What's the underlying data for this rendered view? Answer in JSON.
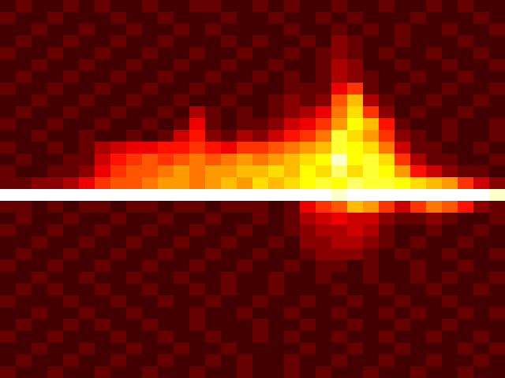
{
  "chart_data": {
    "type": "heatmap",
    "color": "hot",
    "zlim": [
      0,
      20
    ],
    "tick_labels": false,
    "cells": [
      [
        2,
        3,
        2,
        2,
        3,
        2,
        3,
        2,
        2,
        3,
        2,
        2,
        3,
        3,
        2,
        2,
        3,
        2,
        3,
        2,
        2,
        3,
        2,
        2,
        3,
        2,
        2,
        3,
        2,
        3,
        2,
        2
      ],
      [
        3,
        2,
        2,
        3,
        2,
        2,
        2,
        3,
        2,
        2,
        3,
        2,
        2,
        2,
        3,
        2,
        2,
        3,
        2,
        2,
        3,
        2,
        3,
        2,
        2,
        2,
        3,
        2,
        2,
        2,
        3,
        2
      ],
      [
        2,
        2,
        3,
        2,
        2,
        3,
        2,
        2,
        3,
        2,
        2,
        3,
        2,
        3,
        2,
        2,
        2,
        2,
        3,
        2,
        2,
        3,
        2,
        3,
        2,
        3,
        2,
        2,
        3,
        2,
        2,
        3
      ],
      [
        2,
        3,
        2,
        2,
        3,
        2,
        2,
        3,
        2,
        2,
        3,
        2,
        2,
        2,
        3,
        2,
        3,
        2,
        2,
        3,
        2,
        4,
        3,
        2,
        2,
        3,
        2,
        2,
        2,
        3,
        2,
        2
      ],
      [
        3,
        2,
        2,
        3,
        2,
        2,
        3,
        2,
        2,
        3,
        2,
        2,
        3,
        2,
        2,
        3,
        2,
        2,
        3,
        2,
        3,
        4,
        3,
        2,
        3,
        2,
        2,
        3,
        2,
        2,
        3,
        2
      ],
      [
        2,
        2,
        3,
        2,
        2,
        3,
        2,
        2,
        3,
        2,
        2,
        3,
        2,
        2,
        3,
        2,
        2,
        3,
        2,
        2,
        3,
        5,
        4,
        2,
        2,
        3,
        2,
        2,
        3,
        2,
        2,
        3
      ],
      [
        2,
        3,
        2,
        2,
        3,
        2,
        2,
        3,
        2,
        2,
        3,
        2,
        2,
        3,
        2,
        2,
        3,
        2,
        3,
        2,
        3,
        5,
        4,
        3,
        2,
        2,
        3,
        2,
        2,
        3,
        2,
        2
      ],
      [
        3,
        2,
        2,
        3,
        2,
        2,
        3,
        2,
        2,
        3,
        2,
        2,
        3,
        2,
        2,
        3,
        2,
        2,
        3,
        3,
        3,
        7,
        9,
        3,
        2,
        3,
        2,
        2,
        3,
        2,
        2,
        3
      ],
      [
        2,
        2,
        3,
        2,
        2,
        3,
        2,
        2,
        3,
        2,
        2,
        3,
        2,
        2,
        3,
        2,
        2,
        3,
        4,
        3,
        4,
        10,
        13,
        5,
        3,
        2,
        2,
        3,
        2,
        2,
        3,
        2
      ],
      [
        2,
        3,
        2,
        2,
        3,
        2,
        2,
        3,
        2,
        2,
        3,
        2,
        5,
        3,
        2,
        3,
        2,
        3,
        4,
        5,
        7,
        11,
        14,
        9,
        4,
        2,
        3,
        2,
        2,
        3,
        2,
        2
      ],
      [
        3,
        2,
        2,
        3,
        2,
        2,
        3,
        2,
        2,
        3,
        2,
        3,
        7,
        3,
        2,
        3,
        3,
        4,
        6,
        7,
        9,
        12,
        15,
        13,
        8,
        3,
        2,
        2,
        3,
        2,
        2,
        3
      ],
      [
        2,
        2,
        3,
        2,
        2,
        3,
        2,
        2,
        3,
        2,
        3,
        6,
        8,
        4,
        3,
        5,
        4,
        6,
        8,
        9,
        11,
        16,
        14,
        12,
        9,
        4,
        3,
        2,
        3,
        2,
        2,
        3
      ],
      [
        3,
        2,
        2,
        3,
        2,
        3,
        5,
        6,
        7,
        7,
        8,
        8,
        9,
        8,
        7,
        9,
        9,
        10,
        11,
        12,
        13,
        16,
        15,
        14,
        11,
        6,
        3,
        3,
        2,
        2,
        3,
        2
      ],
      [
        2,
        3,
        2,
        2,
        3,
        3,
        6,
        8,
        9,
        10,
        9,
        10,
        11,
        10,
        11,
        12,
        11,
        12,
        13,
        14,
        15,
        19,
        15,
        16,
        14,
        9,
        5,
        3,
        3,
        2,
        2,
        3
      ],
      [
        3,
        2,
        2,
        3,
        3,
        4,
        7,
        9,
        10,
        10,
        11,
        12,
        11,
        12,
        12,
        13,
        13,
        14,
        13,
        15,
        14,
        17,
        14,
        16,
        15,
        12,
        8,
        6,
        4,
        3,
        3,
        2
      ],
      [
        3,
        3,
        4,
        4,
        5,
        7,
        9,
        10,
        10,
        11,
        12,
        12,
        11,
        12,
        13,
        12,
        14,
        13,
        14,
        15,
        16,
        15,
        17,
        16,
        16,
        15,
        14,
        13,
        12,
        9,
        6,
        4
      ],
      [
        20,
        20,
        20,
        20,
        20,
        20,
        20,
        20,
        20,
        20,
        20,
        20,
        20,
        20,
        20,
        20,
        20,
        20,
        20,
        20,
        20,
        19,
        20,
        20,
        20,
        20,
        20,
        20,
        20,
        20,
        20,
        19
      ],
      [
        3,
        3,
        2,
        3,
        2,
        3,
        3,
        2,
        3,
        3,
        2,
        3,
        3,
        2,
        3,
        3,
        3,
        2,
        3,
        7,
        9,
        10,
        13,
        12,
        9,
        6,
        9,
        11,
        10,
        8,
        4,
        3
      ],
      [
        2,
        3,
        2,
        2,
        3,
        2,
        2,
        3,
        2,
        2,
        3,
        2,
        2,
        3,
        2,
        2,
        3,
        2,
        3,
        5,
        6,
        7,
        6,
        6,
        4,
        3,
        3,
        4,
        3,
        2,
        2,
        3
      ],
      [
        3,
        2,
        2,
        3,
        2,
        2,
        3,
        2,
        2,
        3,
        2,
        2,
        3,
        2,
        2,
        3,
        2,
        2,
        3,
        4,
        5,
        5,
        6,
        5,
        3,
        2,
        2,
        3,
        2,
        2,
        3,
        2
      ],
      [
        2,
        2,
        3,
        2,
        2,
        3,
        2,
        2,
        3,
        2,
        2,
        3,
        2,
        2,
        3,
        2,
        2,
        3,
        2,
        4,
        4,
        5,
        5,
        4,
        3,
        2,
        3,
        2,
        2,
        3,
        2,
        2
      ],
      [
        2,
        3,
        2,
        2,
        3,
        2,
        2,
        3,
        2,
        2,
        3,
        2,
        2,
        3,
        2,
        2,
        3,
        2,
        2,
        3,
        4,
        4,
        4,
        3,
        2,
        3,
        2,
        2,
        3,
        2,
        2,
        3
      ],
      [
        3,
        2,
        2,
        3,
        2,
        2,
        3,
        2,
        2,
        3,
        2,
        2,
        3,
        2,
        2,
        3,
        2,
        2,
        3,
        2,
        3,
        3,
        2,
        3,
        2,
        2,
        3,
        2,
        2,
        3,
        2,
        2
      ],
      [
        2,
        2,
        3,
        2,
        2,
        3,
        2,
        2,
        3,
        2,
        2,
        3,
        2,
        2,
        3,
        2,
        2,
        3,
        2,
        2,
        3,
        2,
        2,
        3,
        2,
        2,
        3,
        2,
        3,
        2,
        2,
        3
      ],
      [
        2,
        3,
        2,
        3,
        2,
        2,
        3,
        2,
        2,
        3,
        2,
        2,
        3,
        2,
        3,
        2,
        2,
        3,
        2,
        2,
        2,
        3,
        2,
        2,
        3,
        2,
        2,
        3,
        2,
        2,
        3,
        2
      ],
      [
        3,
        2,
        2,
        2,
        3,
        2,
        2,
        3,
        2,
        2,
        3,
        2,
        2,
        3,
        2,
        2,
        3,
        2,
        2,
        3,
        2,
        2,
        3,
        2,
        2,
        3,
        2,
        2,
        3,
        2,
        2,
        2
      ],
      [
        2,
        2,
        3,
        2,
        2,
        3,
        2,
        2,
        3,
        2,
        2,
        2,
        3,
        2,
        2,
        3,
        2,
        2,
        3,
        2,
        2,
        3,
        2,
        2,
        3,
        2,
        3,
        2,
        2,
        3,
        2,
        3
      ],
      [
        2,
        3,
        2,
        2,
        3,
        2,
        3,
        2,
        2,
        3,
        2,
        2,
        3,
        2,
        2,
        2,
        3,
        2,
        2,
        3,
        2,
        2,
        3,
        2,
        2,
        3,
        2,
        2,
        3,
        2,
        2,
        2
      ],
      [
        3,
        2,
        2,
        3,
        2,
        2,
        2,
        3,
        2,
        2,
        3,
        2,
        2,
        3,
        2,
        2,
        3,
        2,
        3,
        2,
        2,
        3,
        2,
        2,
        3,
        2,
        2,
        3,
        2,
        2,
        3,
        2
      ],
      [
        2,
        2,
        3,
        2,
        2,
        3,
        2,
        2,
        3,
        2,
        2,
        3,
        2,
        2,
        3,
        2,
        2,
        2,
        2,
        3,
        2,
        2,
        3,
        2,
        2,
        3,
        2,
        2,
        2,
        3,
        2,
        3
      ],
      [
        2,
        3,
        2,
        2,
        3,
        2,
        2,
        3,
        2,
        2,
        3,
        2,
        2,
        3,
        2,
        3,
        2,
        2,
        3,
        2,
        2,
        3,
        2,
        2,
        3,
        2,
        2,
        3,
        2,
        2,
        3,
        2
      ],
      [
        3,
        2,
        2,
        3,
        2,
        2,
        3,
        2,
        2,
        3,
        2,
        2,
        3,
        2,
        2,
        3,
        2,
        2,
        3,
        2,
        3,
        2,
        2,
        3,
        2,
        2,
        3,
        2,
        2,
        3,
        2,
        2
      ]
    ]
  }
}
